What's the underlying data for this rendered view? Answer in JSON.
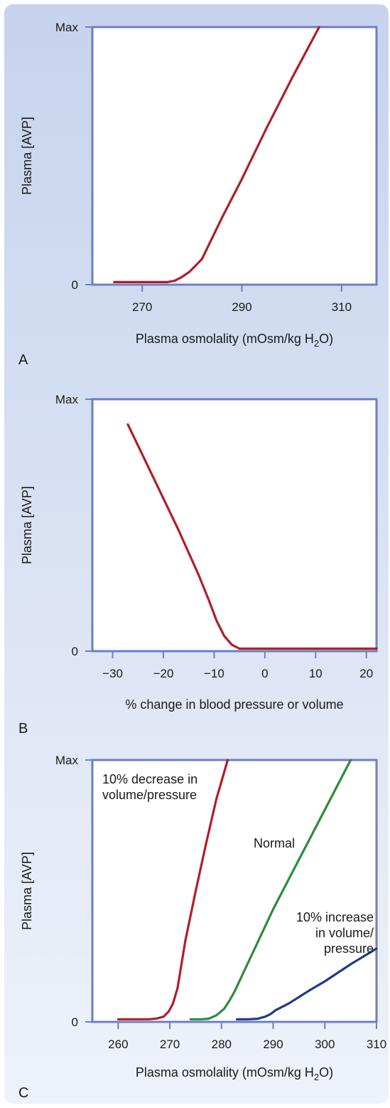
{
  "chart_data": [
    {
      "type": "line",
      "panel_label": "A",
      "xlabel": "Plasma osmolality (mOsm/kg H2O)",
      "xlabel_parts": [
        "Plasma osmolality (mOsm/kg H",
        "2",
        "O)"
      ],
      "ylabel": "Plasma [AVP]",
      "xlim": [
        260,
        317
      ],
      "ylim": [
        0,
        1
      ],
      "x_ticks": [
        270,
        290,
        310
      ],
      "x_tick_labels": [
        "270",
        "290",
        "310"
      ],
      "y_ticks": [
        0,
        1
      ],
      "y_tick_labels": [
        "0",
        "Max"
      ],
      "grid": false,
      "series": [
        {
          "color": "#b01e2a",
          "x": [
            264.4,
            270,
            275,
            276.5,
            278,
            279.5,
            280.5,
            282,
            286,
            290,
            295,
            300,
            305.5
          ],
          "y": [
            0.01,
            0.01,
            0.01,
            0.015,
            0.03,
            0.05,
            0.07,
            0.1,
            0.26,
            0.41,
            0.61,
            0.8,
            1.0
          ]
        }
      ]
    },
    {
      "type": "line",
      "panel_label": "B",
      "xlabel": "% change in blood pressure or volume",
      "ylabel": "Plasma [AVP]",
      "xlim": [
        -34,
        22
      ],
      "ylim": [
        0,
        1
      ],
      "x_ticks": [
        -30,
        -20,
        -10,
        0,
        10,
        20
      ],
      "x_tick_labels": [
        "−30",
        "−20",
        "−10",
        "0",
        "10",
        "20"
      ],
      "y_ticks": [
        0,
        1
      ],
      "y_tick_labels": [
        "0",
        "Max"
      ],
      "grid": false,
      "series": [
        {
          "color": "#b01e2a",
          "x": [
            -27,
            -22,
            -17,
            -13,
            -11,
            -9.5,
            -8,
            -6.5,
            -5,
            -3,
            0,
            10,
            22
          ],
          "y": [
            0.9,
            0.69,
            0.48,
            0.3,
            0.2,
            0.12,
            0.06,
            0.025,
            0.01,
            0.01,
            0.01,
            0.01,
            0.01
          ]
        }
      ]
    },
    {
      "type": "line",
      "panel_label": "C",
      "xlabel": "Plasma osmolality (mOsm/kg H2O)",
      "xlabel_parts": [
        "Plasma osmolality (mOsm/kg H",
        "2",
        "O)"
      ],
      "ylabel": "Plasma [AVP]",
      "xlim": [
        255,
        310
      ],
      "ylim": [
        0,
        1
      ],
      "x_ticks": [
        260,
        270,
        280,
        290,
        300,
        310
      ],
      "x_tick_labels": [
        "260",
        "270",
        "280",
        "290",
        "300",
        "310"
      ],
      "y_ticks": [
        0,
        1
      ],
      "y_tick_labels": [
        "0",
        "Max"
      ],
      "grid": false,
      "series": [
        {
          "color": "#b01e2a",
          "annotation": [
            "10% decrease in",
            "volume/pressure"
          ],
          "x": [
            260,
            263,
            266,
            267.5,
            268.8,
            269.8,
            270.6,
            271.5,
            273,
            275,
            277,
            279,
            281.2
          ],
          "y": [
            0.01,
            0.01,
            0.01,
            0.013,
            0.02,
            0.04,
            0.07,
            0.13,
            0.31,
            0.5,
            0.68,
            0.85,
            1.0
          ]
        },
        {
          "color": "#2e8b3c",
          "annotation": [
            "Normal"
          ],
          "x": [
            274,
            276,
            277.5,
            279,
            280.5,
            281.5,
            282.5,
            285,
            290,
            295,
            300,
            305
          ],
          "y": [
            0.01,
            0.01,
            0.012,
            0.025,
            0.05,
            0.08,
            0.115,
            0.22,
            0.43,
            0.62,
            0.81,
            1.0
          ]
        },
        {
          "color": "#1f3a8a",
          "annotation": [
            "10% increase",
            "in volume/",
            "pressure"
          ],
          "x": [
            283,
            285,
            287,
            288.5,
            289.5,
            290.5,
            293,
            297,
            300,
            305,
            310
          ],
          "y": [
            0.01,
            0.01,
            0.012,
            0.02,
            0.03,
            0.045,
            0.07,
            0.12,
            0.155,
            0.22,
            0.28
          ]
        }
      ]
    }
  ]
}
